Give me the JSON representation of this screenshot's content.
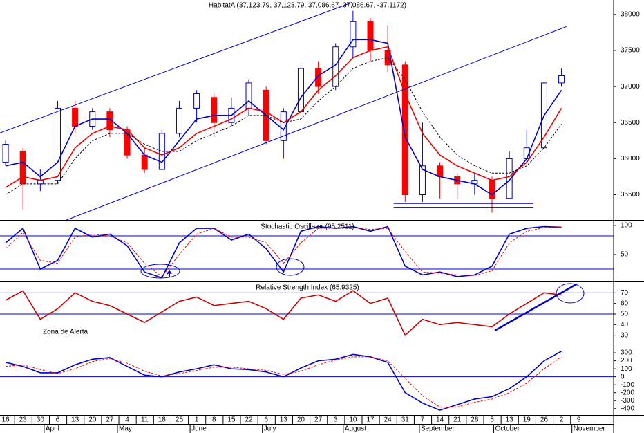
{
  "chart_data": [
    {
      "type": "candlestick",
      "title": "HabitatA (37,123.79, 37,123.79, 37,086.67, 37,086.67, -37.1172)",
      "xlim": [
        -1.6,
        175
      ],
      "ylim": [
        35150,
        38200
      ],
      "yticks": [
        35500,
        36000,
        36500,
        37000,
        37500,
        38000
      ],
      "up_color": "#0000cc",
      "down_color": "#ff0000",
      "x": [
        0,
        5,
        10,
        15,
        20,
        25,
        30,
        35,
        40,
        45,
        50,
        55,
        60,
        65,
        70,
        75,
        80,
        85,
        90,
        95,
        100,
        105,
        110,
        115,
        120,
        125,
        130,
        135,
        140,
        145,
        150,
        155,
        160
      ],
      "open": [
        35950,
        36100,
        35650,
        35700,
        36700,
        36450,
        36650,
        36400,
        36050,
        35850,
        36350,
        36700,
        36850,
        36500,
        36700,
        36950,
        36250,
        36650,
        37250,
        37000,
        37550,
        37900,
        37500,
        37300,
        35500,
        35900,
        35750,
        35650,
        35700,
        35450,
        36000,
        36150,
        37050
      ],
      "high": [
        36250,
        36150,
        35850,
        36800,
        36800,
        36700,
        36700,
        36450,
        36150,
        36400,
        36800,
        36950,
        36900,
        36850,
        37100,
        37000,
        36700,
        37300,
        37350,
        37600,
        38050,
        37950,
        37850,
        37350,
        36500,
        35950,
        35800,
        35800,
        35750,
        36100,
        36400,
        37100,
        37250
      ],
      "low": [
        35900,
        35300,
        35550,
        35650,
        36350,
        36400,
        36300,
        36000,
        35800,
        35850,
        36300,
        36500,
        36300,
        36450,
        36600,
        36200,
        36000,
        36600,
        36900,
        36950,
        37400,
        37350,
        37200,
        35400,
        35400,
        35450,
        35450,
        35500,
        35250,
        35450,
        35950,
        36100,
        37000
      ],
      "close": [
        36200,
        35650,
        35700,
        36700,
        36450,
        36650,
        36400,
        36050,
        35850,
        36350,
        36700,
        36900,
        36500,
        36700,
        37050,
        36250,
        36650,
        37250,
        37000,
        37550,
        37900,
        37500,
        37300,
        35500,
        35900,
        35750,
        35650,
        35700,
        35450,
        36000,
        36150,
        37050,
        37150
      ],
      "series": [
        {
          "color": "#0000cc",
          "values": [
            35900,
            35950,
            35750,
            35950,
            36450,
            36550,
            36550,
            36350,
            36050,
            35950,
            36250,
            36550,
            36600,
            36600,
            36800,
            36600,
            36400,
            36850,
            37150,
            37300,
            37650,
            37650,
            37600,
            36300,
            35850,
            35750,
            35700,
            35650,
            35500,
            35700,
            36000,
            36600,
            36950
          ]
        },
        {
          "color": "#ee0000",
          "values": [
            35600,
            35750,
            35700,
            35750,
            36150,
            36350,
            36450,
            36400,
            36150,
            36050,
            36150,
            36350,
            36450,
            36550,
            36700,
            36650,
            36500,
            36650,
            36950,
            37150,
            37400,
            37500,
            37550,
            36900,
            36350,
            36050,
            35900,
            35800,
            35700,
            35750,
            35950,
            36300,
            36700
          ]
        },
        {
          "color": "#000000",
          "dash": true,
          "values": [
            35500,
            35650,
            35650,
            35650,
            36000,
            36250,
            36350,
            36350,
            36200,
            36100,
            36100,
            36250,
            36350,
            36450,
            36600,
            36600,
            36500,
            36550,
            36800,
            37000,
            37250,
            37350,
            37400,
            37100,
            36650,
            36300,
            36050,
            35900,
            35800,
            35800,
            35900,
            36150,
            36480
          ]
        }
      ],
      "lines": [
        {
          "color": "#0000cc",
          "x": [
            -1.6,
            99.8
          ],
          "values": [
            36357,
            38168
          ]
        },
        {
          "color": "#0000cc",
          "x": [
            8.35,
            161.4
          ],
          "values": [
            34978,
            37832
          ]
        },
        {
          "color": "#0000cc",
          "x": [
            111.7,
            151.9
          ],
          "values": [
            35378,
            35378
          ]
        },
        {
          "color": "#0000cc",
          "x": [
            111.7,
            151.9
          ],
          "values": [
            35326,
            35326
          ]
        }
      ]
    },
    {
      "type": "line",
      "title": "Stochastic Oscillator (95.2511)",
      "xlim": [
        -1.6,
        175
      ],
      "ylim": [
        6,
        107
      ],
      "yticks": [
        50,
        100
      ],
      "levels": [
        82,
        25
      ],
      "x": [
        0,
        5,
        10,
        15,
        20,
        25,
        30,
        35,
        40,
        45,
        50,
        55,
        60,
        65,
        70,
        75,
        80,
        85,
        90,
        95,
        100,
        105,
        110,
        115,
        120,
        125,
        130,
        135,
        140,
        145,
        150,
        155,
        160
      ],
      "series": [
        {
          "color": "#0000cc",
          "values": [
            70,
            95,
            25,
            40,
            95,
            80,
            85,
            65,
            20,
            10,
            70,
            95,
            95,
            75,
            85,
            60,
            20,
            90,
            98,
            95,
            98,
            90,
            98,
            30,
            15,
            20,
            12,
            15,
            30,
            85,
            95,
            98,
            97
          ]
        },
        {
          "color": "#ee0000",
          "dash": true,
          "values": [
            60,
            88,
            40,
            35,
            80,
            85,
            82,
            70,
            35,
            12,
            50,
            85,
            95,
            80,
            80,
            70,
            35,
            70,
            95,
            96,
            96,
            93,
            95,
            55,
            20,
            18,
            15,
            14,
            22,
            70,
            90,
            96,
            97
          ]
        }
      ]
    },
    {
      "type": "line",
      "title": "Relative Strength Index (65.9325)",
      "annotation": "Zona de Alerta",
      "xlim": [
        -1.6,
        175
      ],
      "ylim": [
        20,
        80
      ],
      "yticks": [
        30,
        40,
        50,
        60,
        70
      ],
      "levels": [
        70,
        50
      ],
      "x": [
        0,
        5,
        10,
        15,
        20,
        25,
        30,
        35,
        40,
        45,
        50,
        55,
        60,
        65,
        70,
        75,
        80,
        85,
        90,
        95,
        100,
        105,
        110,
        115,
        120,
        125,
        130,
        135,
        140,
        145,
        150,
        155,
        160
      ],
      "series": [
        {
          "color": "#cc0000",
          "values": [
            63,
            72,
            45,
            55,
            70,
            62,
            58,
            50,
            42,
            52,
            62,
            66,
            58,
            60,
            62,
            55,
            45,
            65,
            68,
            62,
            72,
            60,
            65,
            30,
            45,
            40,
            42,
            40,
            38,
            50,
            60,
            70,
            68
          ]
        }
      ],
      "lines": [
        {
          "color": "#0000cc",
          "x": [
            140.8,
            164.4
          ],
          "values": [
            34.4,
            78.3
          ]
        }
      ]
    },
    {
      "type": "line",
      "xlim": [
        -1.6,
        175
      ],
      "ylim": [
        -480,
        370
      ],
      "yticks": [
        -400,
        -300,
        -200,
        -100,
        0,
        100,
        200,
        300
      ],
      "levels": [
        0
      ],
      "x": [
        0,
        5,
        10,
        15,
        20,
        25,
        30,
        35,
        40,
        45,
        50,
        55,
        60,
        65,
        70,
        75,
        80,
        85,
        90,
        95,
        100,
        105,
        110,
        115,
        120,
        125,
        130,
        135,
        140,
        145,
        150,
        155,
        160
      ],
      "series": [
        {
          "color": "#0000cc",
          "values": [
            180,
            130,
            50,
            50,
            150,
            220,
            240,
            130,
            20,
            0,
            60,
            100,
            150,
            100,
            90,
            60,
            0,
            110,
            200,
            220,
            280,
            250,
            180,
            -200,
            -330,
            -420,
            -350,
            -280,
            -250,
            -150,
            0,
            200,
            320
          ]
        },
        {
          "color": "#ee0000",
          "dash": true,
          "values": [
            130,
            150,
            90,
            40,
            100,
            190,
            230,
            170,
            70,
            10,
            40,
            80,
            120,
            120,
            100,
            80,
            30,
            70,
            150,
            210,
            250,
            250,
            200,
            -20,
            -240,
            -380,
            -380,
            -320,
            -280,
            -200,
            -80,
            100,
            250
          ]
        }
      ],
      "xticks": [
        {
          "value": 0,
          "label": "16"
        },
        {
          "value": 5,
          "label": "23"
        },
        {
          "value": 10,
          "label": "30"
        },
        {
          "value": 15,
          "label": "6"
        },
        {
          "value": 20,
          "label": "13"
        },
        {
          "value": 25,
          "label": "20"
        },
        {
          "value": 30,
          "label": "27"
        },
        {
          "value": 35,
          "label": "4"
        },
        {
          "value": 40,
          "label": "11"
        },
        {
          "value": 45,
          "label": "18"
        },
        {
          "value": 50,
          "label": "25"
        },
        {
          "value": 55,
          "label": "1"
        },
        {
          "value": 60,
          "label": "8"
        },
        {
          "value": 65,
          "label": "15"
        },
        {
          "value": 70,
          "label": "22"
        },
        {
          "value": 75,
          "label": "6"
        },
        {
          "value": 80,
          "label": "13"
        },
        {
          "value": 85,
          "label": "20"
        },
        {
          "value": 90,
          "label": "27"
        },
        {
          "value": 95,
          "label": "3"
        },
        {
          "value": 100,
          "label": "10"
        },
        {
          "value": 105,
          "label": "17"
        },
        {
          "value": 110,
          "label": "24"
        },
        {
          "value": 115,
          "label": "31"
        },
        {
          "value": 120,
          "label": "7"
        },
        {
          "value": 125,
          "label": "14"
        },
        {
          "value": 130,
          "label": "21"
        },
        {
          "value": 135,
          "label": "28"
        },
        {
          "value": 140,
          "label": "5"
        },
        {
          "value": 145,
          "label": "13"
        },
        {
          "value": 150,
          "label": "19"
        },
        {
          "value": 155,
          "label": "26"
        },
        {
          "value": 160,
          "label": "2"
        },
        {
          "value": 165,
          "label": "9"
        }
      ],
      "month_ticks": [
        {
          "value": 12.7,
          "label": "April"
        },
        {
          "value": 33.8,
          "label": "May"
        },
        {
          "value": 54.7,
          "label": "June"
        },
        {
          "value": 75.5,
          "label": "July"
        },
        {
          "value": 98.8,
          "label": "August"
        },
        {
          "value": 120.7,
          "label": "September"
        },
        {
          "value": 142.1,
          "label": "October"
        },
        {
          "value": 164.6,
          "label": "November"
        }
      ]
    }
  ]
}
